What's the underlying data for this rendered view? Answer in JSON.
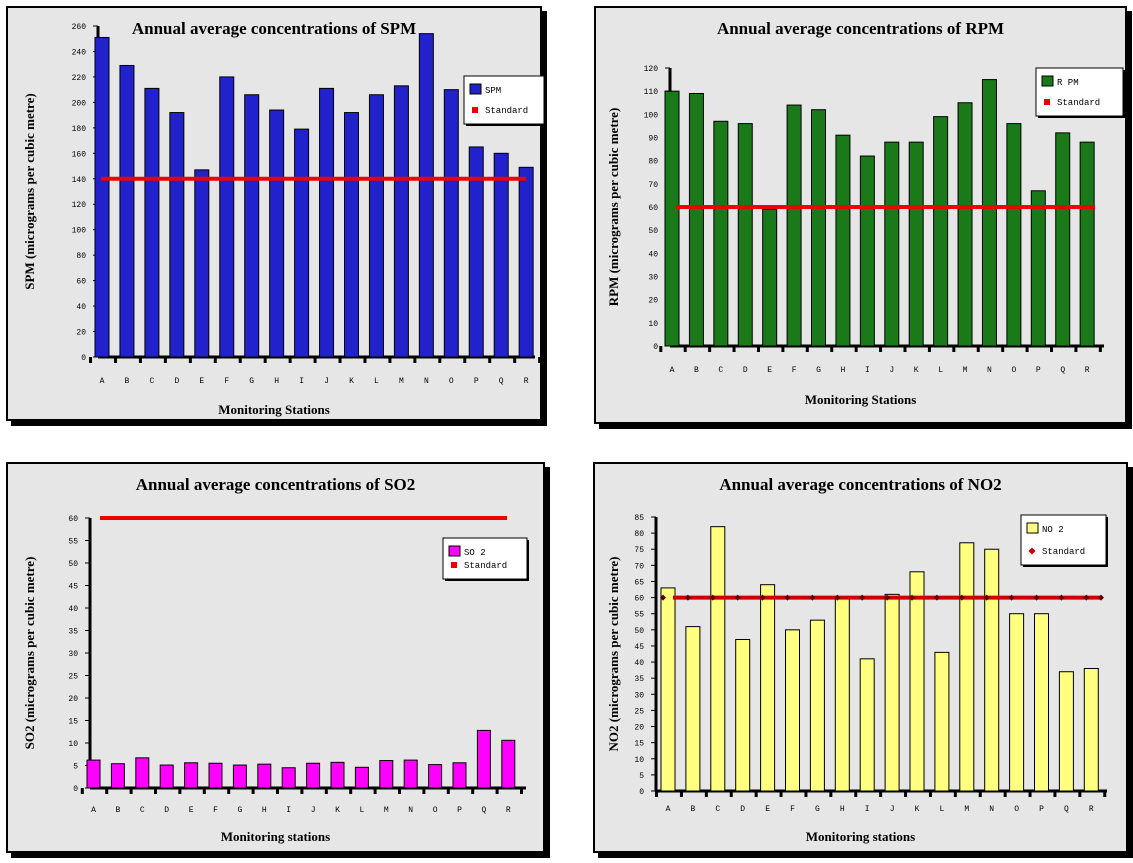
{
  "chart_data": [
    {
      "type": "bar",
      "title": "Annual average concentrations of SPM",
      "xlabel": "Monitoring Stations",
      "ylabel": "SPM (micrograms per cubic metre)",
      "categories": [
        "A",
        "B",
        "C",
        "D",
        "E",
        "F",
        "G",
        "H",
        "I",
        "J",
        "K",
        "L",
        "M",
        "N",
        "O",
        "P",
        "Q",
        "R"
      ],
      "series": [
        {
          "name": "SPM",
          "values": [
            251,
            229,
            211,
            192,
            147,
            220,
            206,
            194,
            179,
            211,
            192,
            206,
            213,
            254,
            210,
            165,
            160,
            149
          ],
          "color": "#2222cc"
        },
        {
          "name": "Standard",
          "values": [
            140,
            140,
            140,
            140,
            140,
            140,
            140,
            140,
            140,
            140,
            140,
            140,
            140,
            140,
            140,
            140,
            140,
            140
          ],
          "color": "#ee0000",
          "kind": "line"
        }
      ],
      "ylim": [
        0,
        260
      ],
      "yticks": [
        0,
        20,
        40,
        60,
        80,
        100,
        120,
        140,
        160,
        180,
        200,
        220,
        240,
        260
      ],
      "legend": "right",
      "background": "#e6e6e6"
    },
    {
      "type": "bar",
      "title": "Annual average concentrations of RPM",
      "xlabel": "Monitoring Stations",
      "ylabel": "RPM (micrograms per cubic metre)",
      "categories": [
        "A",
        "B",
        "C",
        "D",
        "E",
        "F",
        "G",
        "H",
        "I",
        "J",
        "K",
        "L",
        "M",
        "N",
        "O",
        "P",
        "Q",
        "R"
      ],
      "series": [
        {
          "name": "R PM",
          "values": [
            110,
            109,
            97,
            96,
            59,
            104,
            102,
            91,
            82,
            88,
            88,
            99,
            105,
            115,
            96,
            67,
            92,
            88
          ],
          "color": "#1a7a1a"
        },
        {
          "name": "Standard",
          "values": [
            60,
            60,
            60,
            60,
            60,
            60,
            60,
            60,
            60,
            60,
            60,
            60,
            60,
            60,
            60,
            60,
            60,
            60
          ],
          "color": "#ee0000",
          "kind": "line"
        }
      ],
      "ylim": [
        0,
        120
      ],
      "yticks": [
        0,
        10,
        20,
        30,
        40,
        50,
        60,
        70,
        80,
        90,
        100,
        110,
        120
      ],
      "legend": "right",
      "background": "#e6e6e6"
    },
    {
      "type": "bar",
      "title": "Annual average concentrations of SO2",
      "xlabel": "Monitoring stations",
      "ylabel": "SO2 (micrograms per cubic metre)",
      "categories": [
        "A",
        "B",
        "C",
        "D",
        "E",
        "F",
        "G",
        "H",
        "I",
        "J",
        "K",
        "L",
        "M",
        "N",
        "O",
        "P",
        "Q",
        "R"
      ],
      "series": [
        {
          "name": "SO 2",
          "values": [
            6.2,
            5.4,
            6.7,
            5.1,
            5.6,
            5.5,
            5.1,
            5.3,
            4.5,
            5.5,
            5.7,
            4.6,
            6.1,
            6.2,
            5.2,
            5.6,
            12.8,
            10.6
          ],
          "color": "#ff00ff"
        },
        {
          "name": "Standard",
          "values": [
            60,
            60,
            60,
            60,
            60,
            60,
            60,
            60,
            60,
            60,
            60,
            60,
            60,
            60,
            60,
            60,
            60,
            60
          ],
          "color": "#ee0000",
          "kind": "line"
        }
      ],
      "ylim": [
        0,
        60
      ],
      "yticks": [
        0,
        5,
        10,
        15,
        20,
        25,
        30,
        35,
        40,
        45,
        50,
        55,
        60
      ],
      "legend": "right",
      "background": "#e6e6e6"
    },
    {
      "type": "bar",
      "title": "Annual average concentrations of NO2",
      "xlabel": "Monitoring stations",
      "ylabel": "NO2 (micrograms per cubic metre)",
      "categories": [
        "A",
        "B",
        "C",
        "D",
        "E",
        "F",
        "G",
        "H",
        "I",
        "J",
        "K",
        "L",
        "M",
        "N",
        "O",
        "P",
        "Q",
        "R"
      ],
      "series": [
        {
          "name": "NO 2",
          "values": [
            63,
            51,
            82,
            47,
            64,
            50,
            53,
            60,
            41,
            61,
            68,
            43,
            77,
            75,
            55,
            55,
            37,
            38
          ],
          "color": "#ffff80"
        },
        {
          "name": "Standard",
          "values": [
            60,
            60,
            60,
            60,
            60,
            60,
            60,
            60,
            60,
            60,
            60,
            60,
            60,
            60,
            60,
            60,
            60,
            60
          ],
          "color": "#cc0000",
          "kind": "line",
          "markers": "diamond"
        }
      ],
      "ylim": [
        0,
        85
      ],
      "yticks": [
        0,
        5,
        10,
        15,
        20,
        25,
        30,
        35,
        40,
        45,
        50,
        55,
        60,
        65,
        70,
        75,
        80,
        85
      ],
      "legend": "top-right",
      "background": "#e6e6e6"
    }
  ]
}
